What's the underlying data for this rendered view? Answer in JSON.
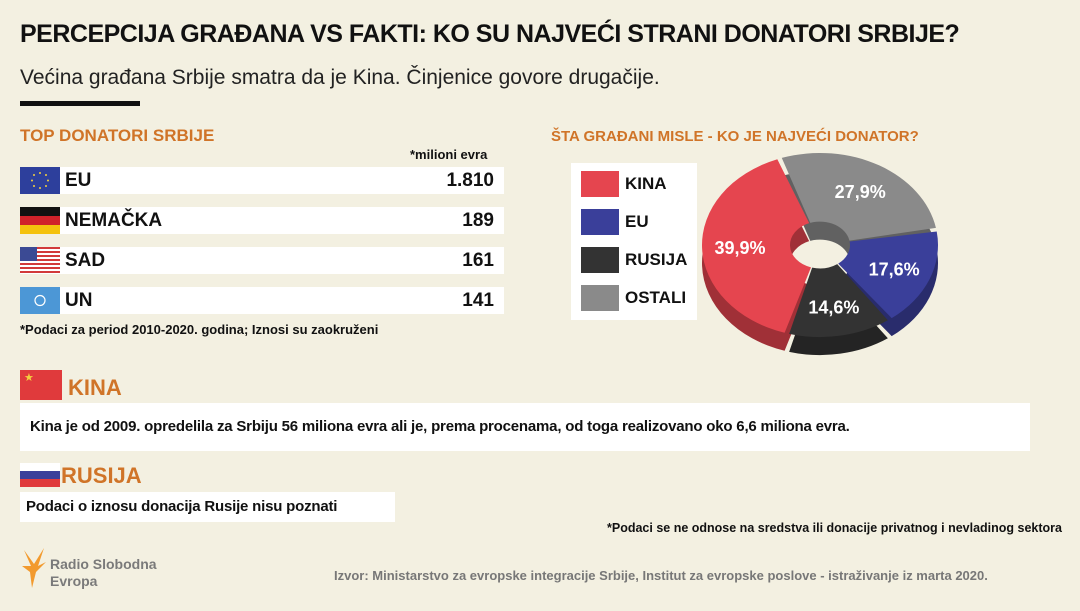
{
  "header": {
    "title": "PERCEPCIJA GRAĐANA VS FAKTI: KO SU NAJVEĆI STRANI DONATORI SRBIJE?",
    "subtitle": "Većina građana Srbije smatra da je Kina. Činjenice govore drugačije."
  },
  "top_donors": {
    "title": "TOP DONATORI SRBIJE",
    "unit": "*milioni evra",
    "rows": [
      {
        "name": "EU",
        "value": "1.810",
        "flag": "eu-flag-icon"
      },
      {
        "name": "NEMAČKA",
        "value": "189",
        "flag": "germany-flag-icon"
      },
      {
        "name": "SAD",
        "value": "161",
        "flag": "usa-flag-icon"
      },
      {
        "name": "UN",
        "value": "141",
        "flag": "un-flag-icon"
      }
    ],
    "note": "*Podaci za period 2010-2020. godina; Iznosi su zaokruženi"
  },
  "chart_data": {
    "type": "pie",
    "title": "ŠTA GRAĐANI MISLE - KO JE NAJVEĆI DONATOR?",
    "donut": true,
    "categories": [
      "KINA",
      "EU",
      "RUSIJA",
      "OSTALI"
    ],
    "values": [
      39.9,
      17.6,
      14.6,
      27.9
    ],
    "labels": [
      "39,9%",
      "17,6%",
      "14,6%",
      "27,9%"
    ],
    "colors": [
      "#e5454f",
      "#3a3f9a",
      "#333333",
      "#8a8a8a"
    ],
    "legend": "left"
  },
  "kina": {
    "heading": "KINA",
    "text": "Kina je od 2009. opredelila za Srbiju 56 miliona evra ali je, prema procenama, od toga realizovano oko 6,6 miliona evra."
  },
  "rusija": {
    "heading": "RUSIJA",
    "text": "Podaci o iznosu donacija Rusije nisu poznati"
  },
  "footer": {
    "note": "*Podaci se ne odnose na sredstva ili donacije privatnog i nevladinog sektora",
    "logo_line1": "Radio Slobodna",
    "logo_line2": "Evropa",
    "source": "Izvor: Ministarstvo za evropske integracije Srbije, Institut za evropske poslove - istraživanje iz marta 2020."
  },
  "colors": {
    "accent": "#d07428",
    "background": "#f3f0e1"
  }
}
